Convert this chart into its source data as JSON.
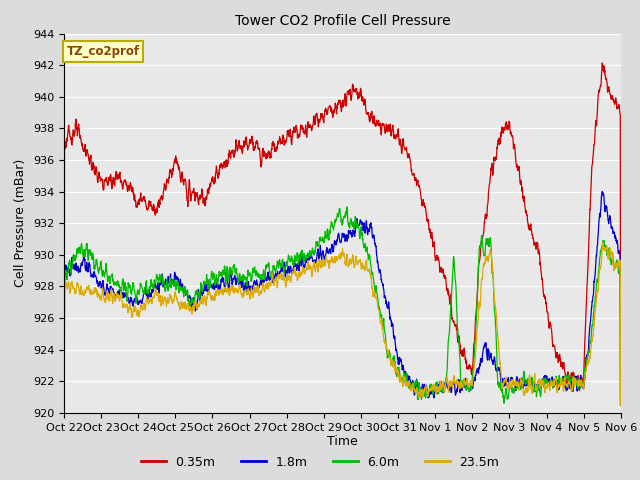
{
  "title": "Tower CO2 Profile Cell Pressure",
  "xlabel": "Time",
  "ylabel": "Cell Pressure (mBar)",
  "ylim": [
    920,
    944
  ],
  "yticks": [
    920,
    922,
    924,
    926,
    928,
    930,
    932,
    934,
    936,
    938,
    940,
    942,
    944
  ],
  "bg_color": "#dcdcdc",
  "plot_bg_color": "#e8e8e8",
  "legend_label": "TZ_co2prof",
  "series_labels": [
    "0.35m",
    "1.8m",
    "6.0m",
    "23.5m"
  ],
  "series_colors": [
    "#cc0000",
    "#0000cc",
    "#00bb00",
    "#ddaa00"
  ],
  "line_width": 0.9,
  "xtick_labels": [
    "Oct 22",
    "Oct 23",
    "Oct 24",
    "Oct 25",
    "Oct 26",
    "Oct 27",
    "Oct 28",
    "Oct 29",
    "Oct 30",
    "Oct 31",
    "Nov 1",
    "Nov 2",
    "Nov 3",
    "Nov 4",
    "Nov 5",
    "Nov 6"
  ],
  "n_points_per_day": 144
}
